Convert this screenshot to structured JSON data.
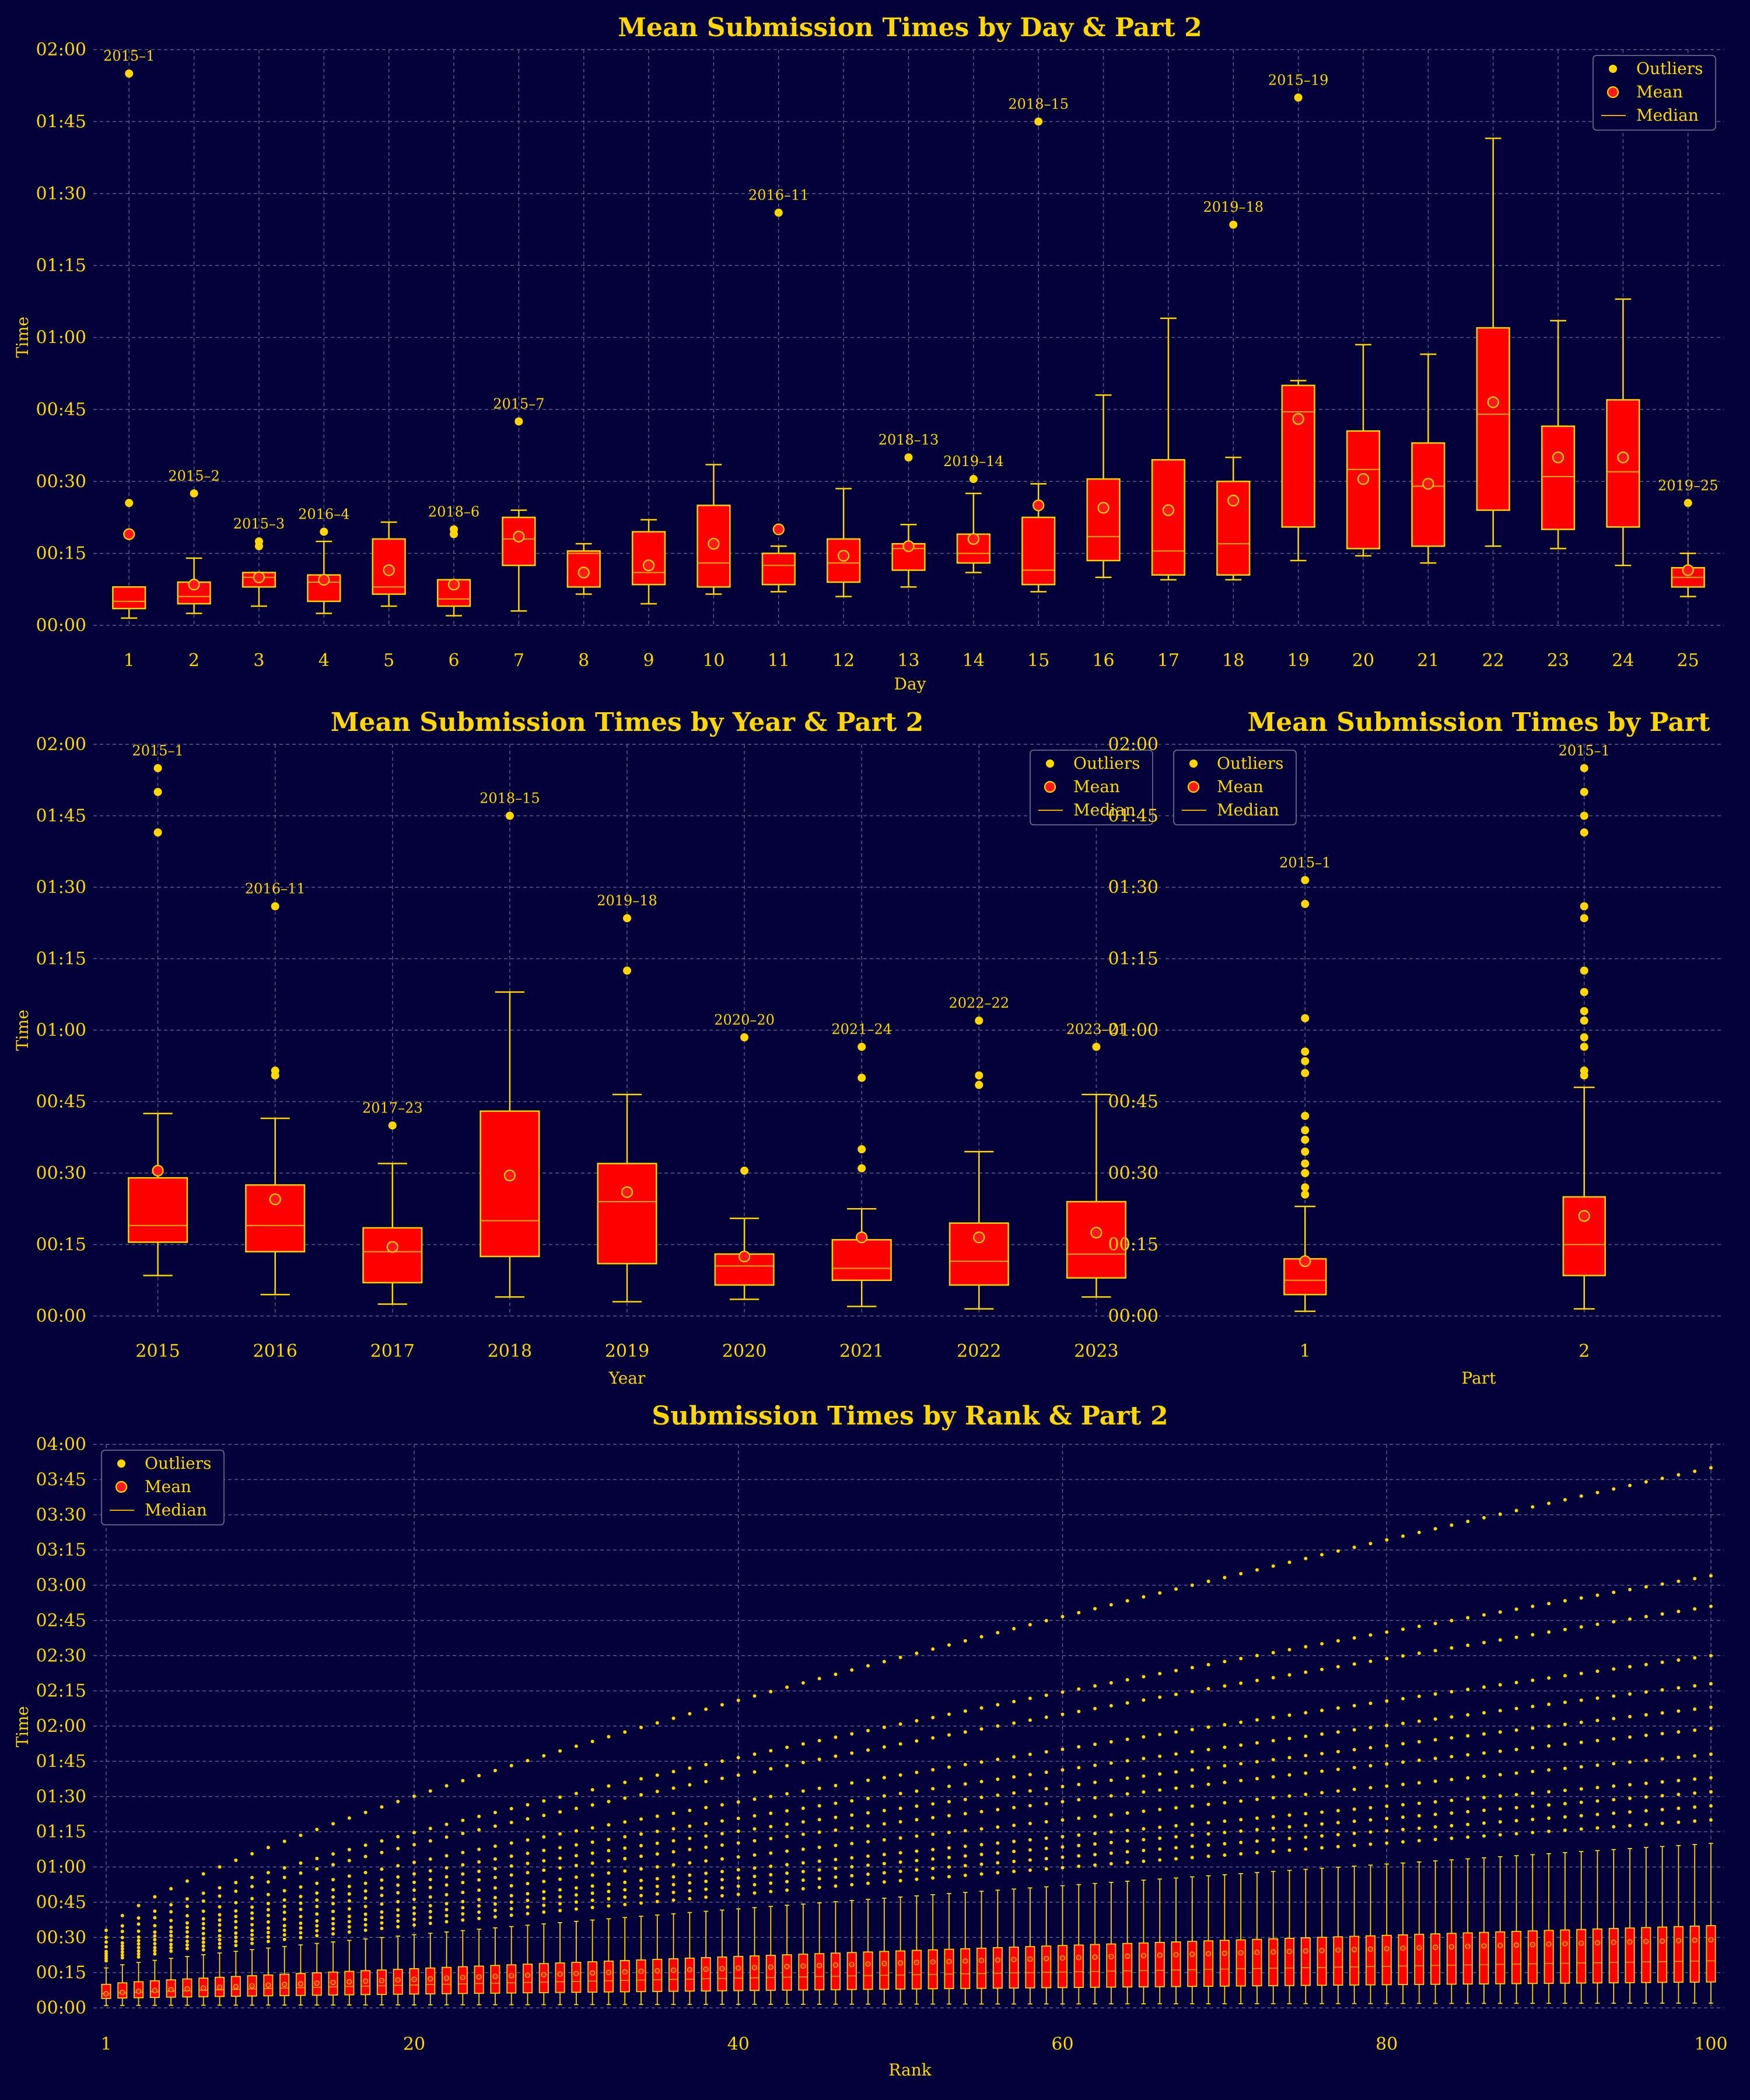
{
  "colors": {
    "background": "#03003a",
    "box": "#ff0000",
    "accent": "#ffd700",
    "mean_fill": "#ff1a1a",
    "grid": "#5a5a8a"
  },
  "chart_data": [
    {
      "id": "day",
      "type": "boxplot",
      "title": "Mean Submission Times by Day & Part 2",
      "xlabel": "Day",
      "ylabel": "Time",
      "ylim": [
        0,
        120
      ],
      "yticks": [
        0,
        15,
        30,
        45,
        60,
        75,
        90,
        105,
        120
      ],
      "ytick_labels": [
        "00:00",
        "00:15",
        "00:30",
        "00:45",
        "01:00",
        "01:15",
        "01:30",
        "01:45",
        "02:00"
      ],
      "grid": true,
      "legend": {
        "position": "top-right",
        "items": [
          "Outliers",
          "Mean",
          "Median"
        ]
      },
      "categories": [
        "1",
        "2",
        "3",
        "4",
        "5",
        "6",
        "7",
        "8",
        "9",
        "10",
        "11",
        "12",
        "13",
        "14",
        "15",
        "16",
        "17",
        "18",
        "19",
        "20",
        "21",
        "22",
        "23",
        "24",
        "25"
      ],
      "boxes": [
        {
          "q1": 3.5,
          "median": 5,
          "q3": 8,
          "whislo": 1.5,
          "whishi": 8,
          "mean": 19,
          "outliers": [
            25.5,
            115
          ],
          "labels": [
            {
              "text": "2015–1",
              "y": 115
            }
          ]
        },
        {
          "q1": 4.5,
          "median": 6,
          "q3": 9,
          "whislo": 2.5,
          "whishi": 14,
          "mean": 8.5,
          "outliers": [
            27.5
          ],
          "labels": [
            {
              "text": "2015–2",
              "y": 27.5
            }
          ]
        },
        {
          "q1": 8,
          "median": 10,
          "q3": 11,
          "whislo": 4,
          "whishi": 11,
          "mean": 10,
          "outliers": [
            16.5,
            17.5
          ],
          "labels": [
            {
              "text": "2015–3",
              "y": 17.5
            }
          ]
        },
        {
          "q1": 5,
          "median": 9,
          "q3": 10.5,
          "whislo": 2.5,
          "whishi": 17.5,
          "mean": 9.5,
          "outliers": [
            19.5
          ],
          "labels": [
            {
              "text": "2016–4",
              "y": 19.5
            }
          ]
        },
        {
          "q1": 6.5,
          "median": 8,
          "q3": 18,
          "whislo": 4,
          "whishi": 21.5,
          "mean": 11.5,
          "outliers": [],
          "labels": []
        },
        {
          "q1": 4,
          "median": 5.5,
          "q3": 9.5,
          "whislo": 2,
          "whishi": 9.5,
          "mean": 8.5,
          "outliers": [
            19,
            20
          ],
          "labels": [
            {
              "text": "2018–6",
              "y": 20
            }
          ]
        },
        {
          "q1": 12.5,
          "median": 18,
          "q3": 22.5,
          "whislo": 3,
          "whishi": 24,
          "mean": 18.5,
          "outliers": [
            42.5
          ],
          "labels": [
            {
              "text": "2015–7",
              "y": 42.5
            }
          ]
        },
        {
          "q1": 8,
          "median": 15,
          "q3": 15.5,
          "whislo": 6.5,
          "whishi": 17,
          "mean": 11,
          "outliers": [],
          "labels": []
        },
        {
          "q1": 8.5,
          "median": 11,
          "q3": 19.5,
          "whislo": 4.5,
          "whishi": 22,
          "mean": 12.5,
          "outliers": [],
          "labels": []
        },
        {
          "q1": 8,
          "median": 13,
          "q3": 25,
          "whislo": 6.5,
          "whishi": 33.5,
          "mean": 17,
          "outliers": [],
          "labels": []
        },
        {
          "q1": 8.5,
          "median": 12.5,
          "q3": 15,
          "whislo": 7,
          "whishi": 16.5,
          "mean": 20,
          "outliers": [
            86
          ],
          "labels": [
            {
              "text": "2016–11",
              "y": 86
            }
          ]
        },
        {
          "q1": 9,
          "median": 13,
          "q3": 18,
          "whislo": 6,
          "whishi": 28.5,
          "mean": 14.5,
          "outliers": [],
          "labels": []
        },
        {
          "q1": 11.5,
          "median": 16,
          "q3": 17,
          "whislo": 8,
          "whishi": 21,
          "mean": 16.5,
          "outliers": [
            35
          ],
          "labels": [
            {
              "text": "2018–13",
              "y": 35
            }
          ]
        },
        {
          "q1": 13,
          "median": 15,
          "q3": 19,
          "whislo": 11,
          "whishi": 27.5,
          "mean": 18,
          "outliers": [
            30.5
          ],
          "labels": [
            {
              "text": "2019–14",
              "y": 30.5
            }
          ]
        },
        {
          "q1": 8.5,
          "median": 11.5,
          "q3": 22.5,
          "whislo": 7,
          "whishi": 29.5,
          "mean": 25,
          "outliers": [
            105
          ],
          "labels": [
            {
              "text": "2018–15",
              "y": 105
            }
          ]
        },
        {
          "q1": 13.5,
          "median": 18.5,
          "q3": 30.5,
          "whislo": 10,
          "whishi": 48,
          "mean": 24.5,
          "outliers": [],
          "labels": []
        },
        {
          "q1": 10.5,
          "median": 15.5,
          "q3": 34.5,
          "whislo": 9.5,
          "whishi": 64,
          "mean": 24,
          "outliers": [],
          "labels": []
        },
        {
          "q1": 10.5,
          "median": 17,
          "q3": 30,
          "whislo": 9.5,
          "whishi": 35,
          "mean": 26,
          "outliers": [
            83.5
          ],
          "labels": [
            {
              "text": "2019–18",
              "y": 83.5
            }
          ]
        },
        {
          "q1": 20.5,
          "median": 44.5,
          "q3": 50,
          "whislo": 13.5,
          "whishi": 51,
          "mean": 43,
          "outliers": [
            110
          ],
          "labels": [
            {
              "text": "2015–19",
              "y": 110
            }
          ]
        },
        {
          "q1": 16,
          "median": 32.5,
          "q3": 40.5,
          "whislo": 14.5,
          "whishi": 58.5,
          "mean": 30.5,
          "outliers": [],
          "labels": []
        },
        {
          "q1": 16.5,
          "median": 29,
          "q3": 38,
          "whislo": 13,
          "whishi": 56.5,
          "mean": 29.5,
          "outliers": [],
          "labels": []
        },
        {
          "q1": 24,
          "median": 44,
          "q3": 62,
          "whislo": 16.5,
          "whishi": 101.5,
          "mean": 46.5,
          "outliers": [],
          "labels": []
        },
        {
          "q1": 20,
          "median": 31,
          "q3": 41.5,
          "whislo": 16,
          "whishi": 63.5,
          "mean": 35,
          "outliers": [],
          "labels": []
        },
        {
          "q1": 20.5,
          "median": 32,
          "q3": 47,
          "whislo": 12.5,
          "whishi": 68,
          "mean": 35,
          "outliers": [],
          "labels": []
        },
        {
          "q1": 8,
          "median": 10,
          "q3": 12,
          "whislo": 6,
          "whishi": 15,
          "mean": 11.5,
          "outliers": [
            25.5
          ],
          "labels": [
            {
              "text": "2019–25",
              "y": 25.5
            }
          ]
        }
      ]
    },
    {
      "id": "year",
      "type": "boxplot",
      "title": "Mean Submission Times by Year & Part 2",
      "xlabel": "Year",
      "ylabel": "Time",
      "ylim": [
        0,
        120
      ],
      "yticks": [
        0,
        15,
        30,
        45,
        60,
        75,
        90,
        105,
        120
      ],
      "ytick_labels": [
        "00:00",
        "00:15",
        "00:30",
        "00:45",
        "01:00",
        "01:15",
        "01:30",
        "01:45",
        "02:00"
      ],
      "grid": true,
      "legend": {
        "position": "top-right",
        "items": [
          "Outliers",
          "Mean",
          "Median"
        ]
      },
      "categories": [
        "2015",
        "2016",
        "2017",
        "2018",
        "2019",
        "2020",
        "2021",
        "2022",
        "2023"
      ],
      "boxes": [
        {
          "q1": 15.5,
          "median": 19,
          "q3": 29,
          "whislo": 8.5,
          "whishi": 42.5,
          "mean": 30.5,
          "outliers": [
            115,
            110,
            101.5
          ],
          "labels": [
            {
              "text": "2015–1",
              "y": 115
            }
          ]
        },
        {
          "q1": 13.5,
          "median": 19,
          "q3": 27.5,
          "whislo": 4.5,
          "whishi": 41.5,
          "mean": 24.5,
          "outliers": [
            86,
            51.5,
            50.5
          ],
          "labels": [
            {
              "text": "2016–11",
              "y": 86
            }
          ]
        },
        {
          "q1": 7,
          "median": 13.5,
          "q3": 18.5,
          "whislo": 2.5,
          "whishi": 32,
          "mean": 14.5,
          "outliers": [
            40
          ],
          "labels": [
            {
              "text": "2017–23",
              "y": 40
            }
          ]
        },
        {
          "q1": 12.5,
          "median": 20,
          "q3": 43,
          "whislo": 4,
          "whishi": 68,
          "mean": 29.5,
          "outliers": [
            105
          ],
          "labels": [
            {
              "text": "2018–15",
              "y": 105
            }
          ]
        },
        {
          "q1": 11,
          "median": 24,
          "q3": 32,
          "whislo": 3,
          "whishi": 46.5,
          "mean": 26,
          "outliers": [
            83.5,
            72.5
          ],
          "labels": [
            {
              "text": "2019–18",
              "y": 83.5
            }
          ]
        },
        {
          "q1": 6.5,
          "median": 10.5,
          "q3": 13,
          "whislo": 3.5,
          "whishi": 20.5,
          "mean": 12.5,
          "outliers": [
            58.5,
            30.5
          ],
          "labels": [
            {
              "text": "2020–20",
              "y": 58.5
            }
          ]
        },
        {
          "q1": 7.5,
          "median": 10,
          "q3": 16,
          "whislo": 2,
          "whishi": 22.5,
          "mean": 16.5,
          "outliers": [
            56.5,
            50,
            35,
            31
          ],
          "labels": [
            {
              "text": "2021–24",
              "y": 56.5
            }
          ]
        },
        {
          "q1": 6.5,
          "median": 11.5,
          "q3": 19.5,
          "whislo": 1.5,
          "whishi": 34.5,
          "mean": 16.5,
          "outliers": [
            62,
            50.5,
            48.5
          ],
          "labels": [
            {
              "text": "2022–22",
              "y": 62
            }
          ]
        },
        {
          "q1": 8,
          "median": 13,
          "q3": 24,
          "whislo": 4,
          "whishi": 46.5,
          "mean": 17.5,
          "outliers": [
            56.5
          ],
          "labels": [
            {
              "text": "2023–21",
              "y": 56.5
            }
          ]
        }
      ]
    },
    {
      "id": "part",
      "type": "boxplot",
      "title": "Mean Submission Times by Part",
      "xlabel": "Part",
      "ylabel": "",
      "ylim": [
        0,
        120
      ],
      "yticks": [
        0,
        15,
        30,
        45,
        60,
        75,
        90,
        105,
        120
      ],
      "ytick_labels": [
        "00:00",
        "00:15",
        "00:30",
        "00:45",
        "01:00",
        "01:15",
        "01:30",
        "01:45",
        "02:00"
      ],
      "grid": true,
      "legend": {
        "position": "top-left",
        "items": [
          "Outliers",
          "Mean",
          "Median"
        ]
      },
      "categories": [
        "1",
        "2"
      ],
      "boxes": [
        {
          "q1": 4.5,
          "median": 7.5,
          "q3": 12,
          "whislo": 1,
          "whishi": 23,
          "mean": 11.5,
          "outliers": [
            91.5,
            86.5,
            62.5,
            55.5,
            53.5,
            51,
            42,
            39,
            37,
            34.5,
            32,
            30,
            27,
            25.5
          ],
          "labels": [
            {
              "text": "2015–1",
              "y": 91.5
            }
          ]
        },
        {
          "q1": 8.5,
          "median": 15,
          "q3": 25,
          "whislo": 1.5,
          "whishi": 48,
          "mean": 21,
          "outliers": [
            115,
            110,
            105,
            101.5,
            86,
            83.5,
            72.5,
            68,
            64,
            62,
            58.5,
            56.5,
            51.5,
            50.5
          ],
          "labels": [
            {
              "text": "2015–1",
              "y": 115
            }
          ]
        }
      ]
    },
    {
      "id": "rank",
      "type": "boxplot",
      "title": "Submission Times by Rank & Part 2",
      "xlabel": "Rank",
      "ylabel": "Time",
      "ylim": [
        0,
        240
      ],
      "xlim": [
        1,
        100
      ],
      "xticks": [
        1,
        20,
        40,
        60,
        80,
        100
      ],
      "yticks": [
        0,
        15,
        30,
        45,
        60,
        75,
        90,
        105,
        120,
        135,
        150,
        165,
        180,
        195,
        210,
        225,
        240
      ],
      "ytick_labels": [
        "00:00",
        "00:15",
        "00:30",
        "00:45",
        "01:00",
        "01:15",
        "01:30",
        "01:45",
        "02:00",
        "02:15",
        "02:30",
        "02:45",
        "03:00",
        "03:15",
        "03:30",
        "03:45",
        "04:00"
      ],
      "grid": true,
      "legend": {
        "position": "top-left",
        "items": [
          "Outliers",
          "Mean",
          "Median"
        ]
      },
      "ranks": {
        "start": 1,
        "end": 100
      },
      "trend": {
        "q1_start": 4,
        "q1_end": 11,
        "median_start": 6,
        "median_end": 20,
        "q3_start": 10,
        "q3_end": 35,
        "whislo_start": 1,
        "whislo_end": 2,
        "whishi_start": 17,
        "whishi_end": 70,
        "mean_start": 6,
        "mean_end": 29
      },
      "outlier_curves": [
        {
          "start": 33,
          "end": 230
        },
        {
          "start": 30,
          "end": 184
        },
        {
          "start": 28,
          "end": 171
        },
        {
          "start": 26,
          "end": 150
        },
        {
          "start": 24,
          "end": 138
        },
        {
          "start": 23,
          "end": 128
        },
        {
          "start": 22,
          "end": 119
        },
        {
          "start": 21,
          "end": 108
        },
        {
          "start": 20,
          "end": 98
        },
        {
          "start": 19,
          "end": 92
        },
        {
          "start": 18,
          "end": 86
        },
        {
          "start": 17,
          "end": 80
        }
      ]
    }
  ]
}
